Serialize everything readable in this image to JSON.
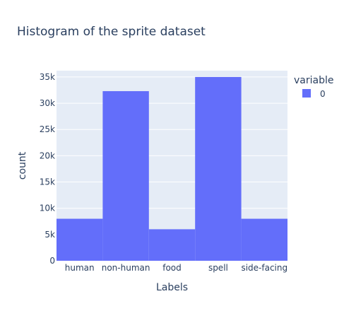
{
  "chart_data": {
    "type": "bar",
    "title": "Histogram of the sprite dataset",
    "xlabel": "Labels",
    "ylabel": "count",
    "categories": [
      "human",
      "non-human",
      "food",
      "spell",
      "side-facing"
    ],
    "series": [
      {
        "name": "0",
        "values": [
          8000,
          32300,
          6000,
          35000,
          8000
        ]
      }
    ],
    "ylim": [
      0,
      36200
    ],
    "yticks": [
      0,
      5000,
      10000,
      15000,
      20000,
      25000,
      30000,
      35000
    ],
    "ytick_labels": [
      "0",
      "5k",
      "10k",
      "15k",
      "20k",
      "25k",
      "30k",
      "35k"
    ],
    "grid": true,
    "legend": {
      "title": "variable",
      "placement": "top-right"
    },
    "colors": {
      "bar": "#636efa",
      "plot_bg": "#e5ecf6",
      "grid": "#ffffff",
      "text": "#2a3f5f"
    }
  }
}
